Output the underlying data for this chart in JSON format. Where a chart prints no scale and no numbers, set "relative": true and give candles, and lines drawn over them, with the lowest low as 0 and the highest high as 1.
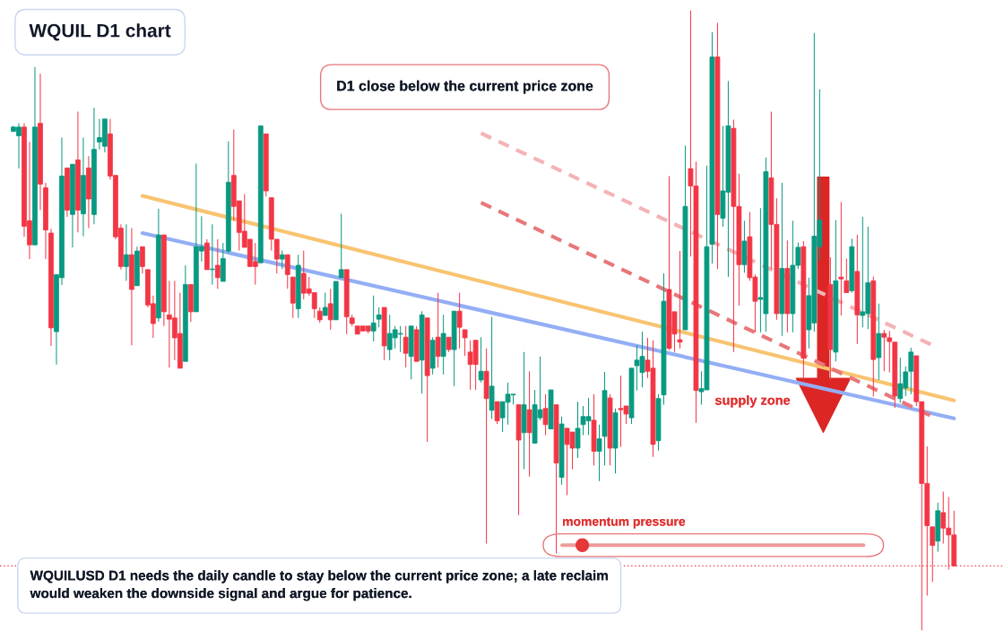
{
  "chart_data": {
    "type": "candlestick",
    "title": "WQUIL D1 chart",
    "relative": true,
    "categories": [
      null,
      null,
      null,
      null,
      null,
      null,
      null,
      null,
      null,
      null,
      null,
      null,
      null,
      null,
      null,
      null,
      null,
      null,
      null,
      null,
      null,
      null,
      null,
      null,
      null,
      null,
      null,
      null,
      null,
      null,
      null,
      null,
      null,
      null,
      null,
      null,
      null,
      null,
      null,
      null,
      null,
      null,
      null,
      null,
      null,
      null,
      null,
      null,
      null,
      null,
      null,
      null,
      null,
      null,
      null,
      null,
      null,
      null,
      null,
      null,
      null,
      null,
      null,
      null,
      null,
      null,
      null,
      null,
      null,
      null,
      null,
      null,
      null,
      null,
      null,
      null,
      null,
      null,
      null,
      null,
      null,
      null,
      null,
      null,
      null,
      null,
      null,
      null,
      null,
      null,
      null,
      null,
      null,
      null,
      null,
      null,
      null,
      null,
      null,
      null,
      null,
      null,
      null,
      null,
      null,
      null,
      null,
      null,
      null,
      null,
      null,
      null,
      null,
      null,
      null,
      null,
      null,
      null,
      null,
      null,
      null,
      null,
      null,
      null,
      null,
      null,
      null,
      null,
      null,
      null,
      null,
      null,
      null,
      null,
      null,
      null,
      null,
      null,
      null,
      null,
      null,
      null,
      null,
      null,
      null,
      null,
      null,
      null,
      null,
      null,
      null,
      null,
      null,
      null,
      null,
      null,
      null,
      null,
      null,
      null,
      null,
      null,
      null,
      null,
      null,
      null,
      null,
      null,
      null,
      null,
      null,
      null,
      null,
      null,
      null,
      null
    ],
    "series": [
      {
        "type": "line",
        "color": "#f8c471",
        "line_style": "solid",
        "values": [
          null,
          null,
          null,
          null,
          null,
          null,
          null,
          null,
          null,
          null,
          null,
          null,
          null,
          null,
          null,
          null,
          null,
          null,
          null,
          null,
          null,
          null,
          null,
          null,
          0.701,
          null,
          null,
          null,
          null,
          null,
          null,
          null,
          null,
          null,
          null,
          null,
          null,
          null,
          null,
          null,
          null,
          null,
          null,
          null,
          null,
          null,
          null,
          null,
          null,
          null,
          null,
          null,
          null,
          null,
          null,
          null,
          null,
          null,
          null,
          null,
          null,
          null,
          null,
          null,
          null,
          null,
          null,
          null,
          null,
          null,
          null,
          null,
          null,
          null,
          null,
          null,
          null,
          null,
          null,
          null,
          null,
          null,
          null,
          null,
          null,
          null,
          null,
          null,
          null,
          null,
          null,
          null,
          null,
          null,
          null,
          null,
          null,
          null,
          null,
          null,
          null,
          null,
          null,
          null,
          null,
          null,
          null,
          null,
          null,
          null,
          null,
          null,
          null,
          null,
          null,
          null,
          null,
          null,
          null,
          null,
          null,
          null,
          null,
          null,
          null,
          null,
          null,
          null,
          null,
          null,
          null,
          null,
          null,
          null,
          null,
          null,
          null,
          null,
          null,
          null,
          null,
          null,
          null,
          null,
          null,
          null,
          null,
          null,
          null,
          null,
          null,
          null,
          null,
          null,
          null,
          null,
          null,
          null,
          null,
          null,
          null,
          null,
          null,
          null,
          null,
          null,
          null,
          null,
          null,
          null,
          null,
          null,
          null,
          null,
          null,
          0.371
        ]
      },
      {
        "type": "line",
        "color": "#93aef5",
        "line_style": "solid",
        "values": [
          null,
          null,
          null,
          null,
          null,
          null,
          null,
          null,
          null,
          null,
          null,
          null,
          null,
          null,
          null,
          null,
          null,
          null,
          null,
          null,
          null,
          null,
          null,
          null,
          0.641,
          null,
          null,
          null,
          null,
          null,
          null,
          null,
          null,
          null,
          null,
          null,
          null,
          null,
          null,
          null,
          null,
          null,
          null,
          null,
          null,
          null,
          null,
          null,
          null,
          null,
          null,
          null,
          null,
          null,
          null,
          null,
          null,
          null,
          null,
          null,
          null,
          null,
          null,
          null,
          null,
          null,
          null,
          null,
          null,
          null,
          null,
          null,
          null,
          null,
          null,
          null,
          null,
          null,
          null,
          null,
          null,
          null,
          null,
          null,
          null,
          null,
          null,
          null,
          null,
          null,
          null,
          null,
          null,
          null,
          null,
          null,
          null,
          null,
          null,
          null,
          null,
          null,
          null,
          null,
          null,
          null,
          null,
          null,
          null,
          null,
          null,
          null,
          null,
          null,
          null,
          null,
          null,
          null,
          null,
          null,
          null,
          null,
          null,
          null,
          null,
          null,
          null,
          null,
          null,
          null,
          null,
          null,
          null,
          null,
          null,
          null,
          null,
          null,
          null,
          null,
          null,
          null,
          null,
          null,
          null,
          null,
          null,
          null,
          null,
          null,
          null,
          null,
          null,
          null,
          null,
          null,
          null,
          null,
          null,
          null,
          null,
          null,
          null,
          null,
          null,
          null,
          null,
          null,
          null,
          null,
          null,
          null,
          null,
          null,
          null,
          0.342
        ]
      },
      {
        "type": "line",
        "color": "#e8777a",
        "line_style": "dashed",
        "values": [
          null,
          null,
          null,
          null,
          null,
          null,
          null,
          null,
          null,
          null,
          null,
          null,
          null,
          null,
          null,
          null,
          null,
          null,
          null,
          null,
          null,
          null,
          null,
          null,
          null,
          null,
          null,
          null,
          null,
          null,
          null,
          null,
          null,
          null,
          null,
          null,
          null,
          null,
          null,
          null,
          null,
          null,
          null,
          null,
          null,
          null,
          null,
          null,
          null,
          null,
          null,
          null,
          null,
          null,
          null,
          null,
          null,
          null,
          null,
          null,
          null,
          null,
          null,
          null,
          null,
          null,
          null,
          null,
          null,
          null,
          null,
          null,
          null,
          null,
          null,
          null,
          null,
          null,
          null,
          null,
          null,
          null,
          null,
          null,
          null,
          null,
          null,
          0.69,
          null,
          null,
          null,
          null,
          null,
          null,
          null,
          null,
          null,
          null,
          null,
          null,
          null,
          null,
          null,
          null,
          null,
          null,
          null,
          null,
          null,
          null,
          null,
          null,
          null,
          null,
          null,
          null,
          null,
          null,
          null,
          null,
          null,
          null,
          null,
          null,
          null,
          null,
          null,
          null,
          null,
          null,
          null,
          null,
          null,
          null,
          null,
          null,
          null,
          null,
          null,
          null,
          null,
          null,
          null,
          null,
          null,
          null,
          null,
          null,
          null,
          null,
          null,
          null,
          null,
          null,
          null,
          null,
          null,
          null,
          null,
          null,
          null,
          null,
          null,
          null,
          null,
          null,
          null,
          null,
          null,
          null,
          null,
          0.345,
          null,
          null,
          null,
          null
        ]
      },
      {
        "type": "line",
        "color": "#f4b3b5",
        "line_style": "dashed",
        "values": [
          null,
          null,
          null,
          null,
          null,
          null,
          null,
          null,
          null,
          null,
          null,
          null,
          null,
          null,
          null,
          null,
          null,
          null,
          null,
          null,
          null,
          null,
          null,
          null,
          null,
          null,
          null,
          null,
          null,
          null,
          null,
          null,
          null,
          null,
          null,
          null,
          null,
          null,
          null,
          null,
          null,
          null,
          null,
          null,
          null,
          null,
          null,
          null,
          null,
          null,
          null,
          null,
          null,
          null,
          null,
          null,
          null,
          null,
          null,
          null,
          null,
          null,
          null,
          null,
          null,
          null,
          null,
          null,
          null,
          null,
          null,
          null,
          null,
          null,
          null,
          null,
          null,
          null,
          null,
          null,
          null,
          null,
          null,
          null,
          null,
          null,
          null,
          0.802,
          null,
          null,
          null,
          null,
          null,
          null,
          null,
          null,
          null,
          null,
          null,
          null,
          null,
          null,
          null,
          null,
          null,
          null,
          null,
          null,
          null,
          null,
          null,
          null,
          null,
          null,
          null,
          null,
          null,
          null,
          null,
          null,
          null,
          null,
          null,
          null,
          null,
          null,
          null,
          null,
          null,
          null,
          null,
          null,
          null,
          null,
          null,
          null,
          null,
          null,
          null,
          null,
          null,
          null,
          null,
          null,
          null,
          null,
          null,
          null,
          null,
          null,
          null,
          null,
          null,
          null,
          null,
          null,
          null,
          null,
          null,
          null,
          null,
          null,
          null,
          null,
          null,
          null,
          null,
          null,
          null,
          null,
          null,
          0.46,
          null,
          null,
          null,
          null
        ]
      },
      {
        "colors": [
          "#089981",
          "#089981",
          "#f23645",
          "#f23645",
          "#089981",
          "#f23645",
          "#f23645",
          "#f23645",
          "#089981",
          "#089981",
          "#f23645",
          "#089981",
          "#f23645",
          "#089981",
          "#f23645",
          "#089981",
          "#089981",
          "#089981",
          "#f23645",
          "#f23645",
          "#f23645",
          "#089981",
          "#f23645",
          "#089981",
          "#f23645",
          "#f23645",
          "#f23645",
          "#089981",
          "#f23645",
          "#f23645",
          "#f23645",
          "#f23645",
          "#089981",
          "#f23645",
          "#089981",
          "#089981",
          "#f23645",
          "#089981",
          "#f23645",
          "#089981",
          "#089981",
          "#f23645",
          "#f23645",
          "#f23645",
          "#f23645",
          "#f23645",
          "#089981",
          "#f23645",
          "#f23645",
          "#f23645",
          "#089981",
          "#f23645",
          "#f23645",
          "#089981",
          "#f23645",
          "#f23645",
          "#f23645",
          "#f23645",
          "#089981",
          "#f23645",
          "#089981",
          "#089981",
          "#f23645",
          "#f23645",
          "#f23645",
          "#f23645",
          "#f23645",
          "#089981",
          "#089981",
          "#f23645",
          "#089981",
          "#089981",
          "#089981",
          "#f23645",
          "#089981",
          "#f23645",
          "#089981",
          "#f23645",
          "#089981",
          "#f23645",
          "#089981",
          "#f23645",
          "#089981",
          "#f23645",
          "#f23645",
          "#f23645",
          "#f23645",
          "#089981",
          "#f23645",
          "#089981",
          "#f23645",
          "#089981",
          "#089981",
          "#089981",
          "#f23645",
          "#089981",
          "#f23645",
          "#089981",
          "#089981",
          "#f23645",
          "#089981",
          "#f23645",
          "#089981",
          "#f23645",
          "#f23645",
          "#089981",
          "#089981",
          "#089981",
          "#f23645",
          "#089981",
          "#089981",
          "#f23645",
          "#089981",
          "#f23645",
          "#f23645",
          "#089981",
          "#089981",
          "#089981",
          "#f23645",
          "#f23645",
          "#089981",
          "#089981",
          "#f23645",
          "#f23645",
          "#f23645",
          "#089981",
          "#f23645",
          "#f23645",
          "#089981",
          "#089981",
          "#089981",
          "#f23645",
          "#089981",
          "#089981",
          "#f23645",
          "#f23645",
          "#089981",
          "#f23645",
          "#f23645",
          "#089981",
          "#089981",
          "#f23645",
          "#f23645",
          "#089981",
          "#f23645",
          "#089981",
          "#089981",
          "#f23645",
          "#089981",
          "#089981",
          "#089981",
          null,
          "#f23645",
          "#089981",
          "#f23645",
          "#f23645",
          "#089981",
          "#f23645",
          "#089981",
          "#089981",
          "#f23645",
          "#089981",
          "#f23645",
          "#f23645",
          "#f23645",
          "#089981",
          "#089981",
          "#089981",
          "#f23645",
          "#f23645",
          "#f23645",
          "#f23645",
          "#089981",
          "#f23645",
          "#f23645",
          "#f23645"
        ],
        "ohlc": [
          [
            0.805,
            0.814,
            0.804,
            0.812
          ],
          [
            0.798,
            0.818,
            0.745,
            0.812
          ],
          [
            0.812,
            0.818,
            0.635,
            0.652
          ],
          [
            0.661,
            0.788,
            0.599,
            0.622
          ],
          [
            0.622,
            0.909,
            0.622,
            0.812
          ],
          [
            0.818,
            0.898,
            0.678,
            0.72
          ],
          [
            0.714,
            0.722,
            0.599,
            0.646
          ],
          [
            0.641,
            0.648,
            0.459,
            0.488
          ],
          [
            0.482,
            0.574,
            0.429,
            0.574
          ],
          [
            0.569,
            0.795,
            0.557,
            0.733
          ],
          [
            0.746,
            0.746,
            0.667,
            0.678
          ],
          [
            0.671,
            0.752,
            0.618,
            0.752
          ],
          [
            0.759,
            0.837,
            0.642,
            0.678
          ],
          [
            0.672,
            0.795,
            0.636,
            0.734
          ],
          [
            0.746,
            0.765,
            0.649,
            0.696
          ],
          [
            0.671,
            0.843,
            0.655,
            0.776
          ],
          [
            0.788,
            0.825,
            0.776,
            0.795
          ],
          [
            0.781,
            0.825,
            0.771,
            0.825
          ],
          [
            0.801,
            0.825,
            0.727,
            0.733
          ],
          [
            0.734,
            0.734,
            0.631,
            0.635
          ],
          [
            0.649,
            0.655,
            0.582,
            0.587
          ],
          [
            0.587,
            0.655,
            0.564,
            0.606
          ],
          [
            0.606,
            0.649,
            0.46,
            0.55
          ],
          [
            0.556,
            0.619,
            0.556,
            0.612
          ],
          [
            0.619,
            0.619,
            0.576,
            0.587
          ],
          [
            0.582,
            0.582,
            0.521,
            0.525
          ],
          [
            0.527,
            0.54,
            0.472,
            0.495
          ],
          [
            0.504,
            0.68,
            0.498,
            0.638
          ],
          [
            0.638,
            0.638,
            0.491,
            0.514
          ],
          [
            0.509,
            0.564,
            0.424,
            0.502
          ],
          [
            0.504,
            0.564,
            0.436,
            0.472
          ],
          [
            0.479,
            0.545,
            0.423,
            0.423
          ],
          [
            0.434,
            0.589,
            0.434,
            0.558
          ],
          [
            0.558,
            0.558,
            0.498,
            0.514
          ],
          [
            0.514,
            0.753,
            0.514,
            0.619
          ],
          [
            0.612,
            0.668,
            0.595,
            0.619
          ],
          [
            0.625,
            0.631,
            0.582,
            0.582
          ],
          [
            0.582,
            0.655,
            0.558,
            0.583
          ],
          [
            0.589,
            0.631,
            0.551,
            0.569
          ],
          [
            0.563,
            0.625,
            0.563,
            0.6
          ],
          [
            0.612,
            0.789,
            0.608,
            0.723
          ],
          [
            0.734,
            0.808,
            0.661,
            0.684
          ],
          [
            0.693,
            0.693,
            0.613,
            0.642
          ],
          [
            0.644,
            0.704,
            0.618,
            0.618
          ],
          [
            0.631,
            0.631,
            0.587,
            0.587
          ],
          [
            0.595,
            0.625,
            0.558,
            0.587
          ],
          [
            0.593,
            0.814,
            0.593,
            0.814
          ],
          [
            0.801,
            0.801,
            0.7,
            0.709
          ],
          [
            0.698,
            0.698,
            0.613,
            0.631
          ],
          [
            0.631,
            0.631,
            0.576,
            0.599
          ],
          [
            0.599,
            0.613,
            0.583,
            0.606
          ],
          [
            0.606,
            0.606,
            0.551,
            0.574
          ],
          [
            0.57,
            0.57,
            0.504,
            0.528
          ],
          [
            0.519,
            0.606,
            0.504,
            0.589
          ],
          [
            0.576,
            0.613,
            0.534,
            0.544
          ],
          [
            0.551,
            0.57,
            0.54,
            0.544
          ],
          [
            0.545,
            0.545,
            0.504,
            0.519
          ],
          [
            0.515,
            0.521,
            0.496,
            0.501
          ],
          [
            0.508,
            0.545,
            0.508,
            0.521
          ],
          [
            0.527,
            0.551,
            0.485,
            0.501
          ],
          [
            0.501,
            0.563,
            0.501,
            0.563
          ],
          [
            0.569,
            0.672,
            0.569,
            0.582
          ],
          [
            0.582,
            0.582,
            0.478,
            0.506
          ],
          [
            0.504,
            0.509,
            0.491,
            0.495
          ],
          [
            0.491,
            0.491,
            0.478,
            0.478
          ],
          [
            0.491,
            0.491,
            0.483,
            0.483
          ],
          [
            0.491,
            0.491,
            0.479,
            0.483
          ],
          [
            0.483,
            0.54,
            0.466,
            0.496
          ],
          [
            0.502,
            0.521,
            0.489,
            0.509
          ],
          [
            0.521,
            0.521,
            0.436,
            0.459
          ],
          [
            0.453,
            0.509,
            0.436,
            0.479
          ],
          [
            0.472,
            0.491,
            0.455,
            0.485
          ],
          [
            0.478,
            0.491,
            0.449,
            0.479
          ],
          [
            0.473,
            0.491,
            0.424,
            0.447
          ],
          [
            0.442,
            0.491,
            0.405,
            0.491
          ],
          [
            0.485,
            0.491,
            0.434,
            0.434
          ],
          [
            0.436,
            0.515,
            0.382,
            0.509
          ],
          [
            0.504,
            0.504,
            0.304,
            0.411
          ],
          [
            0.423,
            0.473,
            0.413,
            0.468
          ],
          [
            0.473,
            0.545,
            0.424,
            0.442
          ],
          [
            0.442,
            0.509,
            0.413,
            0.479
          ],
          [
            0.473,
            0.473,
            0.449,
            0.453
          ],
          [
            0.453,
            0.515,
            0.394,
            0.515
          ],
          [
            0.515,
            0.545,
            0.455,
            0.489
          ],
          [
            0.485,
            0.485,
            0.443,
            0.472
          ],
          [
            0.449,
            0.468,
            0.388,
            0.429
          ],
          [
            0.468,
            0.468,
            0.388,
            0.429
          ],
          [
            0.404,
            0.473,
            0.4,
            0.418
          ],
          [
            0.418,
            0.455,
            0.14,
            0.374
          ],
          [
            0.355,
            0.506,
            0.341,
            0.394
          ],
          [
            0.369,
            0.369,
            0.333,
            0.338
          ],
          [
            0.343,
            0.369,
            0.32,
            0.369
          ],
          [
            0.368,
            0.4,
            0.332,
            0.381
          ],
          [
            0.38,
            0.381,
            0.364,
            0.381
          ],
          [
            0.364,
            0.364,
            0.186,
            0.307
          ],
          [
            0.319,
            0.449,
            0.26,
            0.364
          ],
          [
            0.356,
            0.418,
            0.248,
            0.319
          ],
          [
            0.302,
            0.388,
            0.302,
            0.364
          ],
          [
            0.343,
            0.442,
            0.339,
            0.356
          ],
          [
            0.358,
            0.381,
            0.315,
            0.332
          ],
          [
            0.325,
            0.388,
            0.325,
            0.388
          ],
          [
            0.364,
            0.364,
            0.124,
            0.27
          ],
          [
            0.247,
            0.345,
            0.235,
            0.333
          ],
          [
            0.326,
            0.326,
            0.218,
            0.3
          ],
          [
            0.32,
            0.32,
            0.26,
            0.294
          ],
          [
            0.294,
            0.369,
            0.278,
            0.326
          ],
          [
            0.332,
            0.362,
            0.315,
            0.345
          ],
          [
            0.338,
            0.375,
            0.315,
            0.345
          ],
          [
            0.339,
            0.381,
            0.266,
            0.289
          ],
          [
            0.289,
            0.332,
            0.241,
            0.309
          ],
          [
            0.313,
            0.417,
            0.266,
            0.387
          ],
          [
            0.375,
            0.381,
            0.266,
            0.294
          ],
          [
            0.294,
            0.358,
            0.253,
            0.351
          ],
          [
            0.358,
            0.411,
            0.296,
            0.356
          ],
          [
            0.362,
            0.362,
            0.333,
            0.349
          ],
          [
            0.343,
            0.423,
            0.333,
            0.423
          ],
          [
            0.427,
            0.46,
            0.387,
            0.436
          ],
          [
            0.416,
            0.482,
            0.392,
            0.442
          ],
          [
            0.436,
            0.472,
            0.407,
            0.418
          ],
          [
            0.423,
            0.468,
            0.28,
            0.3
          ],
          [
            0.306,
            0.381,
            0.29,
            0.374
          ],
          [
            0.38,
            0.576,
            0.364,
            0.531
          ],
          [
            0.55,
            0.733,
            0.452,
            0.455
          ],
          [
            0.514,
            0.514,
            0.449,
            0.478
          ],
          [
            0.469,
            0.612,
            0.455,
            0.465
          ],
          [
            0.485,
            0.782,
            0.485,
            0.684
          ],
          [
            0.745,
            1.0,
            0.603,
            0.717
          ],
          [
            0.717,
            0.756,
            0.335,
            0.387
          ],
          [
            0.385,
            0.418,
            0.364,
            0.39
          ],
          [
            0.388,
            0.75,
            0.388,
            0.619
          ],
          [
            0.623,
            0.965,
            0.592,
            0.925
          ],
          [
            0.925,
            0.98,
            0.583,
            0.671
          ],
          [
            0.665,
            0.814,
            0.651,
            0.709
          ],
          [
            0.707,
            0.886,
            0.57,
            0.814
          ],
          [
            0.81,
            0.824,
            0.449,
            0.684
          ],
          [
            0.684,
            0.737,
            0.524,
            0.59
          ],
          [
            0.59,
            0.661,
            0.577,
            0.628
          ],
          [
            0.635,
            0.675,
            0.564,
            0.569
          ],
          [
            0.57,
            0.574,
            0.481,
            0.531
          ],
          [
            0.534,
            0.681,
            0.481,
            0.537
          ],
          [
            0.511,
            0.763,
            0.482,
            0.74
          ],
          [
            0.73,
            0.837,
            0.583,
            0.655
          ],
          [
            0.655,
            0.697,
            0.501,
            0.511
          ],
          [
            0.511,
            0.722,
            0.475,
            0.584
          ],
          [
            0.584,
            0.629,
            0.481,
            0.511
          ],
          [
            0.511,
            0.661,
            0.481,
            0.589
          ],
          [
            0.589,
            0.626,
            0.583,
            0.618
          ],
          [
            0.619,
            0.628,
            0.405,
            0.439
          ],
          [
            0.485,
            0.569,
            0.455,
            0.54
          ],
          [
            0.496,
            0.964,
            0.482,
            0.636
          ],
          [
            0.619,
            0.873,
            0.597,
            0.662
          ],
          null,
          [
            0.558,
            0.602,
            0.404,
            0.453
          ],
          [
            0.449,
            0.662,
            0.434,
            0.564
          ],
          [
            0.57,
            0.691,
            0.508,
            0.567
          ],
          [
            0.564,
            0.6,
            0.545,
            0.545
          ],
          [
            0.548,
            0.632,
            0.545,
            0.619
          ],
          [
            0.579,
            0.638,
            0.462,
            0.509
          ],
          [
            0.508,
            0.667,
            0.489,
            0.514
          ],
          [
            0.511,
            0.651,
            0.486,
            0.561
          ],
          [
            0.564,
            0.571,
            0.377,
            0.437
          ],
          [
            0.44,
            0.527,
            0.404,
            0.479
          ],
          [
            0.479,
            0.485,
            0.418,
            0.473
          ],
          [
            0.472,
            0.483,
            0.416,
            0.466
          ],
          [
            0.465,
            0.465,
            0.359,
            0.378
          ],
          [
            0.374,
            0.44,
            0.367,
            0.398
          ],
          [
            0.391,
            0.426,
            0.378,
            0.417
          ],
          [
            0.418,
            0.456,
            0.381,
            0.449
          ],
          [
            0.443,
            0.443,
            0.362,
            0.369
          ],
          [
            0.369,
            0.369,
            0.0,
            0.237
          ],
          [
            0.237,
            0.297,
            0.056,
            0.169
          ],
          [
            0.167,
            0.167,
            0.078,
            0.137
          ],
          [
            0.144,
            0.206,
            0.127,
            0.193
          ],
          [
            0.19,
            0.224,
            0.14,
            0.165
          ],
          [
            0.165,
            0.215,
            0.098,
            0.154
          ],
          [
            0.154,
            0.193,
            0.104,
            0.104
          ]
        ]
      }
    ],
    "ref_lines": [
      {
        "axis": "y",
        "value": 0.104,
        "color": "#f23645",
        "line_style": "dotted"
      }
    ],
    "annotations": [
      "D1 close below the current price zone",
      "supply zone",
      "momentum pressure",
      "WQUILUSD D1 needs the daily candle to stay below the current price zone; a late reclaim\nwould weaken the downside signal and argue for patience."
    ]
  }
}
